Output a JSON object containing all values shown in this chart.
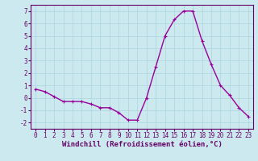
{
  "x": [
    0,
    1,
    2,
    3,
    4,
    5,
    6,
    7,
    8,
    9,
    10,
    11,
    12,
    13,
    14,
    15,
    16,
    17,
    18,
    19,
    20,
    21,
    22,
    23
  ],
  "y": [
    0.7,
    0.5,
    0.1,
    -0.3,
    -0.3,
    -0.3,
    -0.5,
    -0.8,
    -0.8,
    -1.2,
    -1.8,
    -1.8,
    0.0,
    2.5,
    5.0,
    6.3,
    7.0,
    7.0,
    4.6,
    2.7,
    1.0,
    0.2,
    -0.8,
    -1.5
  ],
  "line_color": "#990099",
  "marker": "+",
  "marker_size": 3,
  "background_color": "#cce9f0",
  "grid_color": "#b0d8e0",
  "xlabel": "Windchill (Refroidissement éolien,°C)",
  "xlabel_fontsize": 6.5,
  "xlim": [
    -0.5,
    23.5
  ],
  "ylim": [
    -2.5,
    7.5
  ],
  "yticks": [
    -2,
    -1,
    0,
    1,
    2,
    3,
    4,
    5,
    6,
    7
  ],
  "xticks": [
    0,
    1,
    2,
    3,
    4,
    5,
    6,
    7,
    8,
    9,
    10,
    11,
    12,
    13,
    14,
    15,
    16,
    17,
    18,
    19,
    20,
    21,
    22,
    23
  ],
  "tick_fontsize": 5.5,
  "linewidth": 1.0,
  "spine_color": "#660066",
  "text_color": "#660066"
}
